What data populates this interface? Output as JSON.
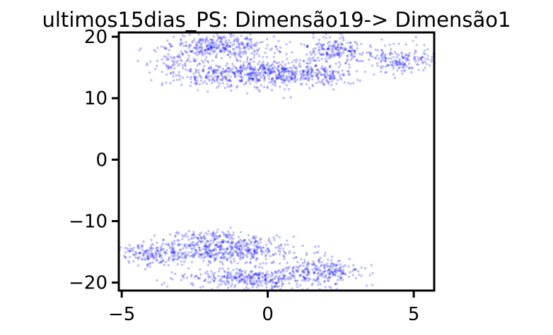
{
  "chart_data": {
    "type": "scatter",
    "title": "ultimos15dias_PS: Dimensão19-> Dimensão1",
    "xlabel": "",
    "ylabel": "",
    "xlim": [
      -5.1,
      5.7
    ],
    "ylim": [
      -21.3,
      20.7
    ],
    "xticks": [
      -5,
      0,
      5
    ],
    "yticks": [
      -20,
      -10,
      0,
      10,
      20
    ],
    "grid": false,
    "legend": "none",
    "point_color": "#0000ff",
    "point_alpha": 0.25,
    "series": [
      {
        "clusters": [
          {
            "cx": -1.6,
            "cy": 18.2,
            "sx": 0.9,
            "sy": 1.0,
            "n": 350
          },
          {
            "cx": 0.4,
            "cy": 14.2,
            "sx": 1.0,
            "sy": 1.1,
            "n": 400
          },
          {
            "cx": -1.8,
            "cy": 13.8,
            "sx": 0.9,
            "sy": 1.0,
            "n": 220
          },
          {
            "cx": 2.3,
            "cy": 17.8,
            "sx": 0.6,
            "sy": 1.0,
            "n": 200
          },
          {
            "cx": 4.6,
            "cy": 16.2,
            "sx": 0.6,
            "sy": 1.2,
            "n": 170
          },
          {
            "cx": 2.0,
            "cy": 13.6,
            "sx": 0.5,
            "sy": 0.8,
            "n": 90
          },
          {
            "cx": -3.3,
            "cy": 15.8,
            "sx": 0.4,
            "sy": 1.0,
            "n": 50
          },
          {
            "cx": -1.2,
            "cy": -14.6,
            "sx": 1.1,
            "sy": 1.1,
            "n": 450
          },
          {
            "cx": -3.8,
            "cy": -15.2,
            "sx": 0.7,
            "sy": 1.0,
            "n": 200
          },
          {
            "cx": -0.5,
            "cy": -19.3,
            "sx": 1.1,
            "sy": 0.9,
            "n": 350
          },
          {
            "cx": 1.9,
            "cy": -18.2,
            "sx": 0.7,
            "sy": 1.2,
            "n": 230
          },
          {
            "cx": -2.2,
            "cy": -12.5,
            "sx": 0.5,
            "sy": 0.5,
            "n": 60
          }
        ]
      }
    ]
  }
}
